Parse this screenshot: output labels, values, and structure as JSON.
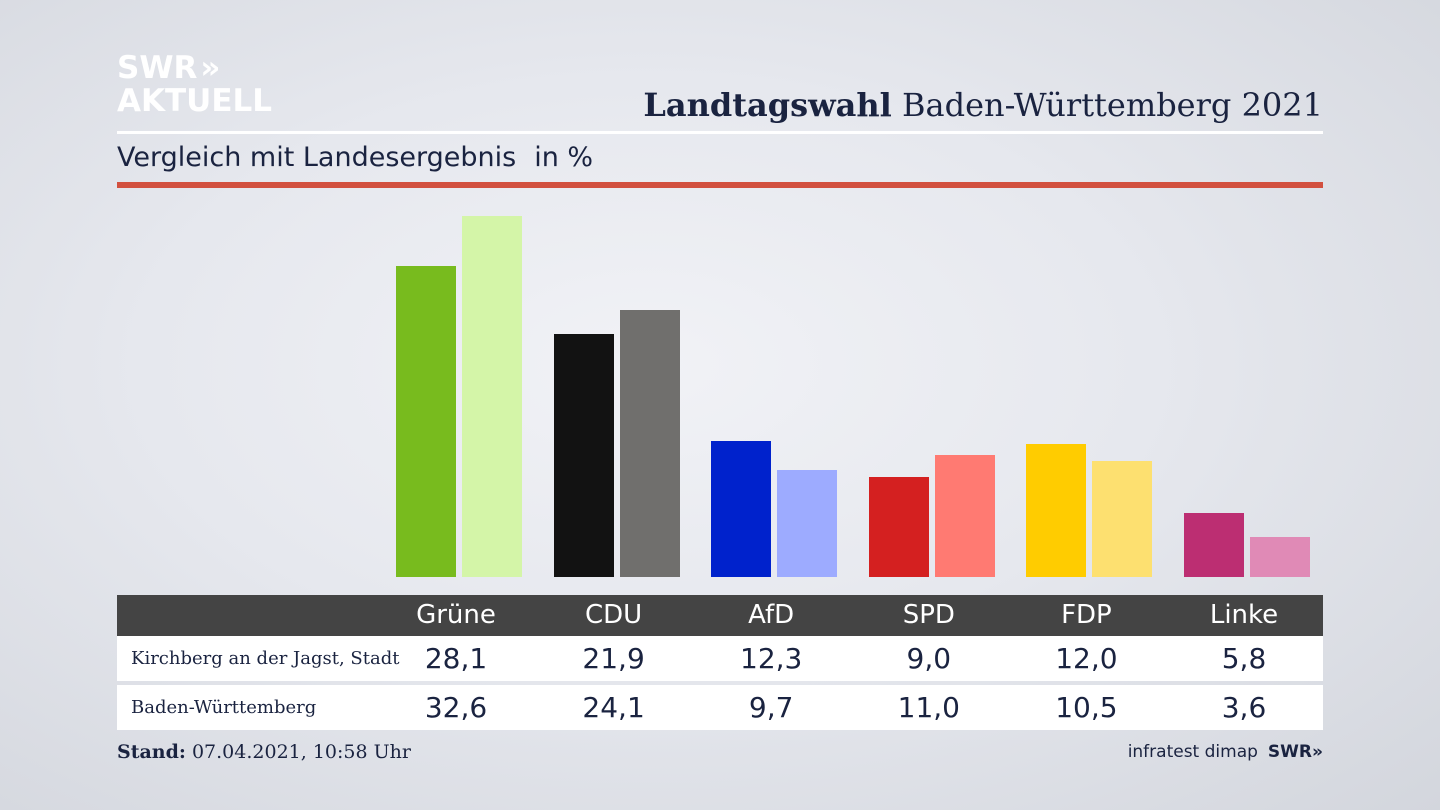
{
  "logo": {
    "line1": "SWR",
    "chevron": "»",
    "line2": "AKTUELL"
  },
  "header": {
    "title_bold": "Landtagswahl",
    "title_rest": " Baden-Württemberg 2021",
    "subtitle": "Vergleich mit Landesergebnis",
    "unit": "in %"
  },
  "colors": {
    "red_rule": "#d2503f",
    "table_header": "#444444"
  },
  "chart_data": {
    "type": "bar",
    "title": "Landtagswahl Baden-Württemberg 2021",
    "subtitle": "Vergleich mit Landesergebnis",
    "ylabel": "in %",
    "categories": [
      "Grüne",
      "CDU",
      "AfD",
      "SPD",
      "FDP",
      "Linke"
    ],
    "series": [
      {
        "name": "Kirchberg an der Jagst, Stadt",
        "values": [
          28.1,
          21.9,
          12.3,
          9.0,
          12.0,
          5.8
        ],
        "labels": [
          "28,1",
          "21,9",
          "12,3",
          "9,0",
          "12,0",
          "5,8"
        ],
        "colors": [
          "#78bb1e",
          "#121212",
          "#0022cc",
          "#d42020",
          "#ffcc00",
          "#bc2e72"
        ]
      },
      {
        "name": "Baden-Württemberg",
        "values": [
          32.6,
          24.1,
          9.7,
          11.0,
          10.5,
          3.6
        ],
        "labels": [
          "32,6",
          "24,1",
          "9,7",
          "11,0",
          "10,5",
          "3,6"
        ],
        "colors": [
          "#d4f5a8",
          "#706f6d",
          "#9dabff",
          "#ff7a72",
          "#fde070",
          "#e08ab6"
        ]
      }
    ],
    "grid": false,
    "legend": "table-below"
  },
  "footer": {
    "stand_label": "Stand:",
    "stand_value": " 07.04.2021, 10:58 Uhr",
    "source": "infratest dimap",
    "brand": "SWR»"
  }
}
